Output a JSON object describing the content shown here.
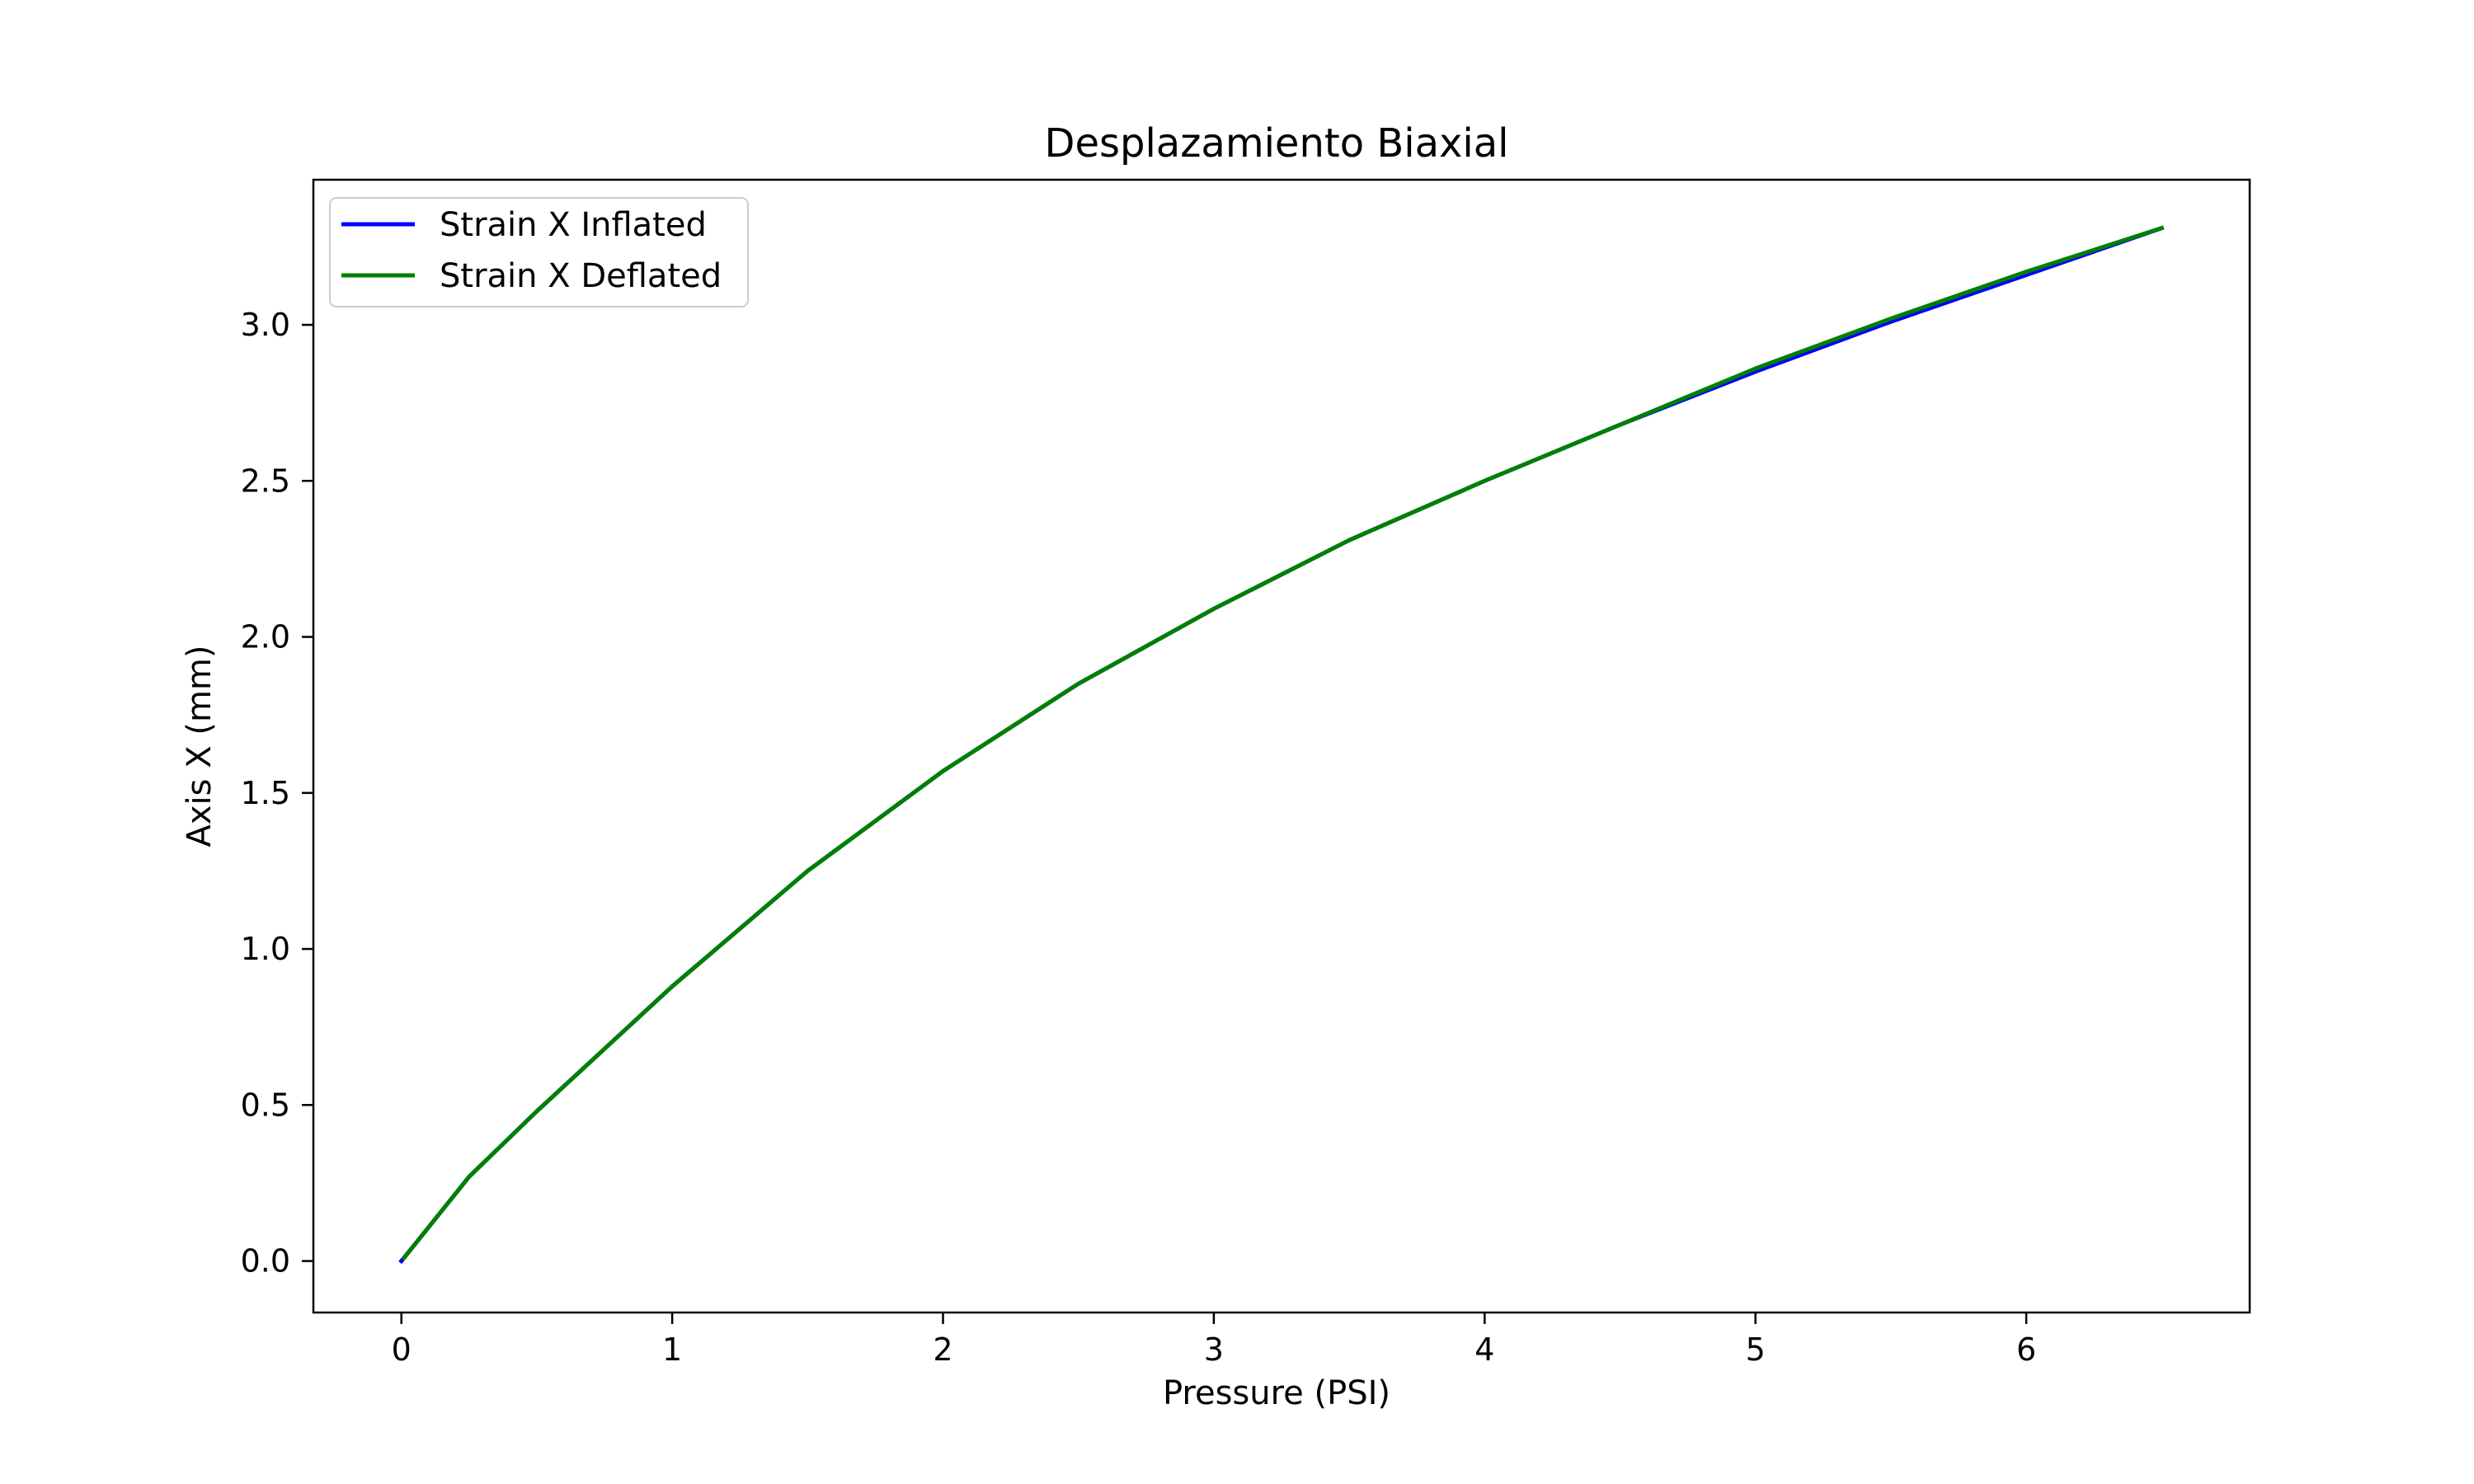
{
  "chart_data": {
    "type": "line",
    "title": "Desplazamiento Biaxial",
    "xlabel": "Pressure (PSI)",
    "ylabel": "Axis X (mm)",
    "xlim": [
      -0.325,
      6.825
    ],
    "ylim": [
      -0.165,
      3.465
    ],
    "xticks": [
      0,
      1,
      2,
      3,
      4,
      5,
      6
    ],
    "xtick_labels": [
      "0",
      "1",
      "2",
      "3",
      "4",
      "5",
      "6"
    ],
    "yticks": [
      0.0,
      0.5,
      1.0,
      1.5,
      2.0,
      2.5,
      3.0
    ],
    "ytick_labels": [
      "0.0",
      "0.5",
      "1.0",
      "1.5",
      "2.0",
      "2.5",
      "3.0"
    ],
    "grid": false,
    "legend_position": "top-left",
    "series": [
      {
        "name": "Strain X Inflated",
        "color": "#0000ff",
        "x": [
          0,
          0.25,
          0.5,
          0.75,
          1.0,
          1.5,
          2.0,
          2.5,
          3.0,
          3.5,
          4.0,
          4.5,
          5.0,
          5.5,
          6.0,
          6.5
        ],
        "y": [
          0.0,
          0.27,
          0.48,
          0.68,
          0.88,
          1.25,
          1.57,
          1.85,
          2.09,
          2.31,
          2.5,
          2.68,
          2.85,
          3.01,
          3.16,
          3.31
        ]
      },
      {
        "name": "Strain X Deflated",
        "color": "#008000",
        "x": [
          0.01,
          0.25,
          0.5,
          0.75,
          1.0,
          1.5,
          2.0,
          2.5,
          3.0,
          3.5,
          4.0,
          4.5,
          5.0,
          5.5,
          6.0,
          6.5
        ],
        "y": [
          0.01,
          0.27,
          0.48,
          0.68,
          0.88,
          1.25,
          1.57,
          1.85,
          2.09,
          2.31,
          2.5,
          2.68,
          2.86,
          3.02,
          3.17,
          3.31
        ]
      }
    ]
  }
}
